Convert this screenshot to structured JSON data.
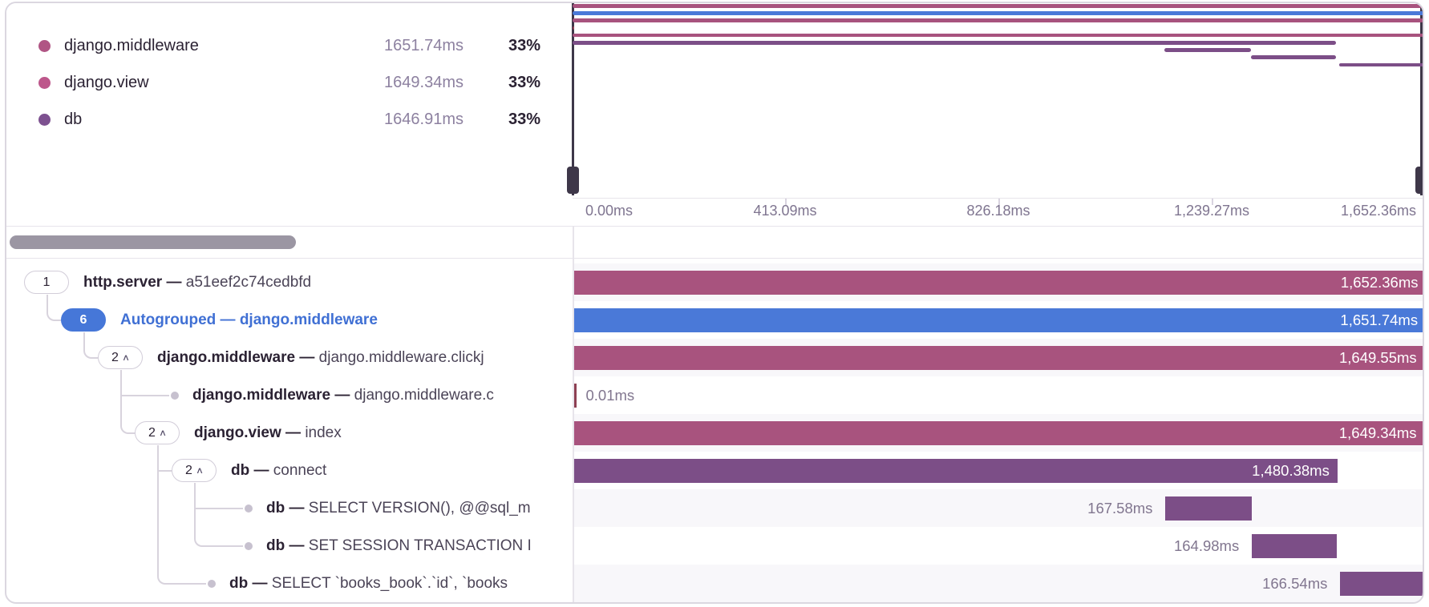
{
  "colors": {
    "pink": "#a8537e",
    "blue": "#4a79d8",
    "purple": "#7c4e87",
    "red": "#8d4053",
    "legend_middleware": "#b05584",
    "legend_view": "#bd578b",
    "legend_db": "#7d5190"
  },
  "legend": {
    "items": [
      {
        "name": "django.middleware",
        "duration": "1651.74ms",
        "percent": "33%",
        "color_key": "legend_middleware"
      },
      {
        "name": "django.view",
        "duration": "1649.34ms",
        "percent": "33%",
        "color_key": "legend_view"
      },
      {
        "name": "db",
        "duration": "1646.91ms",
        "percent": "33%",
        "color_key": "legend_db"
      }
    ]
  },
  "minimap": {
    "total_ms": 1652.36,
    "axis_ticks": [
      "0.00ms",
      "413.09ms",
      "826.18ms",
      "1,239.27ms",
      "1,652.36ms"
    ]
  },
  "spans": [
    {
      "name": "http.server",
      "desc": "a51eef2c74cedbfd",
      "depth": 0,
      "marker": "pill",
      "badge": "1",
      "chevron": false,
      "autogroup": false,
      "start_ms": 0,
      "duration_ms": 1652.36,
      "duration_label": "1,652.36ms",
      "label_pos": "inside",
      "color_key": "pink"
    },
    {
      "name": "Autogrouped",
      "desc": "django.middleware",
      "depth": 1,
      "marker": "pill",
      "badge": "6",
      "chevron": false,
      "autogroup": true,
      "start_ms": 0,
      "duration_ms": 1651.74,
      "duration_label": "1,651.74ms",
      "label_pos": "inside",
      "color_key": "blue"
    },
    {
      "name": "django.middleware",
      "desc": "django.middleware.clickj",
      "depth": 2,
      "marker": "pill",
      "badge": "2",
      "chevron": true,
      "autogroup": false,
      "start_ms": 0,
      "duration_ms": 1649.55,
      "duration_label": "1,649.55ms",
      "label_pos": "inside",
      "color_key": "pink"
    },
    {
      "name": "django.middleware",
      "desc": "django.middleware.c",
      "depth": 3,
      "marker": "dot",
      "badge": null,
      "chevron": false,
      "autogroup": false,
      "start_ms": 0,
      "duration_ms": 0.01,
      "duration_label": "0.01ms",
      "label_pos": "right",
      "color_key": "red"
    },
    {
      "name": "django.view",
      "desc": "index",
      "depth": 3,
      "marker": "pill",
      "badge": "2",
      "chevron": true,
      "autogroup": false,
      "start_ms": 0,
      "duration_ms": 1649.34,
      "duration_label": "1,649.34ms",
      "label_pos": "inside",
      "color_key": "pink"
    },
    {
      "name": "db",
      "desc": "connect",
      "depth": 4,
      "marker": "pill",
      "badge": "2",
      "chevron": true,
      "autogroup": false,
      "start_ms": 0,
      "duration_ms": 1480.38,
      "duration_label": "1,480.38ms",
      "label_pos": "inside",
      "color_key": "purple"
    },
    {
      "name": "db",
      "desc": "SELECT VERSION(), @@sql_m",
      "depth": 5,
      "marker": "dot",
      "badge": null,
      "chevron": false,
      "autogroup": false,
      "start_ms": 1147.0,
      "duration_ms": 167.58,
      "duration_label": "167.58ms",
      "label_pos": "left",
      "color_key": "purple"
    },
    {
      "name": "db",
      "desc": "SET SESSION TRANSACTION I",
      "depth": 5,
      "marker": "dot",
      "badge": null,
      "chevron": false,
      "autogroup": false,
      "start_ms": 1314.6,
      "duration_ms": 164.98,
      "duration_label": "164.98ms",
      "label_pos": "left",
      "color_key": "purple"
    },
    {
      "name": "db",
      "desc": "SELECT `books_book`.`id`, `books",
      "depth": 4,
      "marker": "dot",
      "badge": null,
      "chevron": false,
      "autogroup": false,
      "start_ms": 1485.8,
      "duration_ms": 166.54,
      "duration_label": "166.54ms",
      "label_pos": "left",
      "color_key": "purple"
    }
  ]
}
